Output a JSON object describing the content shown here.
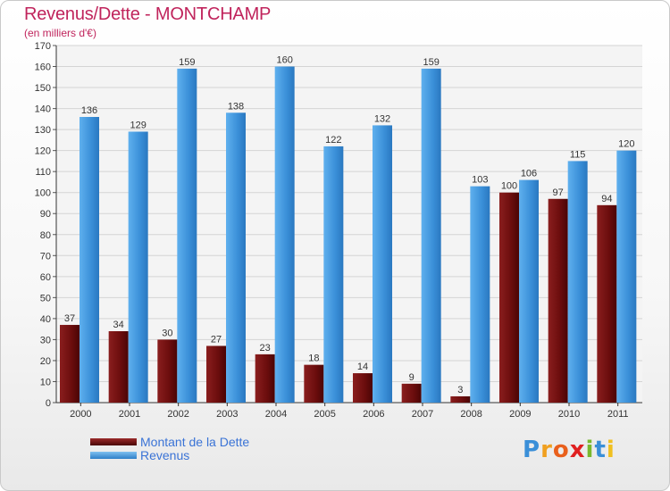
{
  "title": "Revenus/Dette - MONTCHAMP",
  "subtitle": "(en milliers d'€)",
  "logo_text": "Proxiti",
  "colors": {
    "dette": "#6b0d0d",
    "revenus": "#3a8fd8",
    "title": "#c0245c",
    "legend_text": "#3a73d6"
  },
  "legend": [
    {
      "label": "Montant de la Dette",
      "color": "#6b0d0d"
    },
    {
      "label": "Revenus",
      "color": "#3a8fd8"
    }
  ],
  "chart_data": {
    "type": "bar",
    "title": "Revenus/Dette - MONTCHAMP",
    "subtitle": "(en milliers d'€)",
    "xlabel": "",
    "ylabel": "",
    "categories": [
      "2000",
      "2001",
      "2002",
      "2003",
      "2004",
      "2005",
      "2006",
      "2007",
      "2008",
      "2009",
      "2010",
      "2011"
    ],
    "series": [
      {
        "name": "Montant de la Dette",
        "values": [
          37,
          34,
          30,
          27,
          23,
          18,
          14,
          9,
          3,
          100,
          97,
          94
        ]
      },
      {
        "name": "Revenus",
        "values": [
          136,
          129,
          159,
          138,
          160,
          122,
          132,
          159,
          103,
          106,
          115,
          120
        ]
      }
    ],
    "ylim": [
      0,
      170
    ],
    "yticks": [
      0,
      10,
      20,
      30,
      40,
      50,
      60,
      70,
      80,
      90,
      100,
      110,
      120,
      130,
      140,
      150,
      160,
      170
    ],
    "grid": true,
    "legend_position": "bottom-left"
  }
}
